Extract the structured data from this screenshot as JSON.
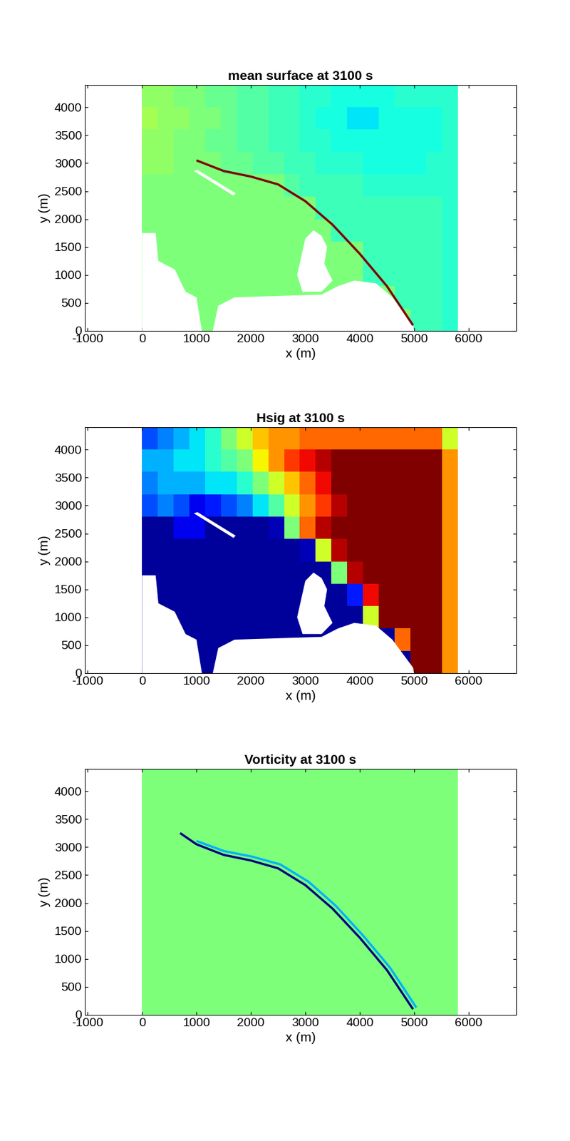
{
  "chart_data": [
    {
      "type": "map",
      "title": "mean surface at 3100 s",
      "x_label": "x (m)",
      "y_label": "y (m)",
      "xlim": [
        -1050,
        6880
      ],
      "ylim": [
        0,
        4400
      ],
      "xticks": [
        -1000,
        0,
        1000,
        2000,
        3000,
        4000,
        5000,
        6000
      ],
      "yticks": [
        0,
        500,
        1000,
        1500,
        2000,
        2500,
        3000,
        3500,
        4000
      ],
      "zlim": [
        -0.2,
        0.2
      ],
      "x_edges": [
        0,
        290,
        580,
        870,
        1160,
        1450,
        1740,
        2030,
        2320,
        2610,
        2900,
        3190,
        3480,
        3770,
        4060,
        4350,
        4640,
        4930,
        5220,
        5510,
        5800
      ],
      "y_edges": [
        0,
        400,
        800,
        1200,
        1600,
        2000,
        2400,
        2800,
        3200,
        3600,
        4000,
        4400
      ],
      "cells": [
        [
          0,
          0,
          0,
          0,
          0,
          0,
          0,
          0,
          0,
          0,
          0,
          0,
          0,
          0,
          0,
          0,
          0,
          -0.03,
          -0.03,
          -0.04
        ],
        [
          0,
          0,
          0,
          0,
          0,
          0,
          0,
          0,
          0,
          0,
          0,
          0,
          0,
          0,
          0,
          0,
          -0.03,
          -0.03,
          -0.03,
          -0.04
        ],
        [
          0,
          0,
          0,
          0,
          0,
          0,
          0,
          0,
          0,
          0,
          0,
          0,
          0,
          0,
          -0.03,
          -0.03,
          -0.03,
          -0.03,
          -0.03,
          -0.04
        ],
        [
          0,
          0,
          0,
          0,
          0,
          0,
          0,
          0,
          0,
          0,
          0,
          0,
          0,
          0,
          -0.03,
          -0.03,
          -0.03,
          -0.03,
          -0.03,
          -0.04
        ],
        [
          0,
          0,
          0,
          0,
          0,
          0,
          0,
          0,
          0,
          0,
          0,
          0,
          -0.03,
          -0.03,
          -0.03,
          -0.03,
          -0.03,
          -0.03,
          -0.03,
          -0.04
        ],
        [
          0,
          0,
          0,
          0,
          0,
          0,
          0,
          0,
          0,
          0,
          0,
          -0.03,
          -0.03,
          -0.03,
          -0.03,
          -0.03,
          -0.03,
          -0.03,
          -0.03,
          -0.04
        ],
        [
          0,
          0,
          0,
          0,
          0,
          0,
          0,
          0,
          0,
          -0.02,
          -0.03,
          -0.03,
          -0.03,
          -0.03,
          -0.04,
          -0.04,
          -0.04,
          -0.04,
          -0.04,
          -0.04
        ],
        [
          0.01,
          0.01,
          0.0,
          0.0,
          0.0,
          -0.01,
          -0.01,
          -0.02,
          -0.02,
          -0.03,
          -0.03,
          -0.04,
          -0.04,
          -0.04,
          -0.05,
          -0.05,
          -0.05,
          -0.05,
          -0.04,
          -0.04
        ],
        [
          0.01,
          0.01,
          0.0,
          0.0,
          -0.01,
          -0.01,
          -0.02,
          -0.02,
          -0.03,
          -0.03,
          -0.04,
          -0.04,
          -0.05,
          -0.05,
          -0.05,
          -0.05,
          -0.05,
          -0.05,
          -0.05,
          -0.04
        ],
        [
          0.02,
          0.01,
          0.01,
          0.0,
          0.0,
          -0.01,
          -0.02,
          -0.02,
          -0.03,
          -0.03,
          -0.04,
          -0.05,
          -0.05,
          -0.06,
          -0.06,
          -0.05,
          -0.05,
          -0.05,
          -0.05,
          -0.04
        ],
        [
          0.01,
          0.01,
          0.0,
          0.0,
          -0.01,
          -0.01,
          -0.02,
          -0.02,
          -0.03,
          -0.03,
          -0.04,
          -0.04,
          -0.05,
          -0.05,
          -0.05,
          -0.05,
          -0.04,
          -0.04,
          -0.04,
          -0.04
        ]
      ],
      "lines": [
        {
          "x": [
            4980,
            4500,
            4000,
            3500,
            3000,
            2500,
            2000,
            1500,
            1000
          ],
          "y": [
            100,
            800,
            1380,
            1900,
            2320,
            2620,
            2760,
            2860,
            3050
          ],
          "value": 0.2
        }
      ],
      "land": [
        [
          [
            0,
            0
          ],
          [
            0,
            1750
          ],
          [
            250,
            1750
          ],
          [
            300,
            1250
          ],
          [
            600,
            1100
          ],
          [
            800,
            700
          ],
          [
            1000,
            600
          ],
          [
            1100,
            0
          ]
        ],
        [
          [
            1300,
            0
          ],
          [
            1400,
            450
          ],
          [
            1700,
            600
          ],
          [
            3300,
            650
          ],
          [
            3600,
            800
          ],
          [
            3900,
            900
          ],
          [
            4300,
            850
          ],
          [
            4600,
            600
          ],
          [
            4980,
            100
          ],
          [
            5000,
            0
          ]
        ],
        [
          [
            2850,
            1000
          ],
          [
            3000,
            1650
          ],
          [
            3150,
            1800
          ],
          [
            3300,
            1700
          ],
          [
            3400,
            1500
          ],
          [
            3350,
            1200
          ],
          [
            3500,
            900
          ],
          [
            3300,
            700
          ],
          [
            2950,
            700
          ]
        ],
        [
          [
            950,
            2860
          ],
          [
            1020,
            2880
          ],
          [
            1720,
            2460
          ],
          [
            1680,
            2420
          ]
        ]
      ]
    },
    {
      "type": "map",
      "title": "Hsig at 3100 s",
      "x_label": "x (m)",
      "y_label": "y (m)",
      "xlim": [
        -1050,
        6880
      ],
      "ylim": [
        0,
        4400
      ],
      "xticks": [
        -1000,
        0,
        1000,
        2000,
        3000,
        4000,
        5000,
        6000
      ],
      "yticks": [
        0,
        500,
        1000,
        1500,
        2000,
        2500,
        3000,
        3500,
        4000
      ],
      "zlim": [
        0,
        2
      ],
      "x_edges": [
        0,
        290,
        580,
        870,
        1160,
        1450,
        1740,
        2030,
        2320,
        2610,
        2900,
        3190,
        3480,
        3770,
        4060,
        4350,
        4640,
        4930,
        5220,
        5510,
        5800
      ],
      "y_edges": [
        0,
        400,
        800,
        1200,
        1600,
        2000,
        2400,
        2800,
        3200,
        3600,
        4000,
        4400
      ],
      "cells": [
        [
          0.05,
          0.05,
          0.05,
          0.05,
          0.05,
          0.05,
          0.05,
          0.05,
          0.05,
          0.05,
          0.05,
          0.05,
          0.05,
          0.05,
          0.05,
          0.05,
          0.05,
          2.0,
          2.0,
          1.5
        ],
        [
          0.05,
          0.05,
          0.05,
          0.05,
          0.05,
          0.05,
          0.05,
          0.05,
          0.05,
          0.05,
          0.05,
          0.05,
          0.05,
          0.05,
          0.05,
          0.05,
          1.6,
          2.0,
          2.0,
          1.5
        ],
        [
          0.05,
          0.05,
          0.05,
          0.05,
          0.05,
          0.05,
          0.05,
          0.05,
          0.05,
          0.05,
          0.05,
          0.05,
          0.05,
          0.05,
          1.2,
          2.0,
          2.0,
          2.0,
          2.0,
          1.5
        ],
        [
          0.05,
          0.05,
          0.05,
          0.05,
          0.05,
          0.05,
          0.05,
          0.05,
          0.05,
          0.05,
          0.05,
          0.05,
          0.05,
          0.3,
          1.8,
          2.0,
          2.0,
          2.0,
          2.0,
          1.5
        ],
        [
          0.05,
          0.05,
          0.05,
          0.05,
          0.05,
          0.05,
          0.05,
          0.05,
          0.05,
          0.05,
          0.05,
          0.05,
          1.0,
          1.9,
          2.0,
          2.0,
          2.0,
          2.0,
          2.0,
          1.5
        ],
        [
          0.05,
          0.05,
          0.05,
          0.05,
          0.05,
          0.05,
          0.05,
          0.05,
          0.05,
          0.05,
          0.1,
          1.2,
          1.9,
          2.0,
          2.0,
          2.0,
          2.0,
          2.0,
          2.0,
          1.5
        ],
        [
          0.05,
          0.05,
          0.2,
          0.2,
          0.05,
          0.05,
          0.05,
          0.05,
          0.1,
          1.0,
          1.6,
          1.9,
          2.0,
          2.0,
          2.0,
          2.0,
          2.0,
          2.0,
          2.0,
          1.5
        ],
        [
          0.4,
          0.5,
          0.4,
          0.2,
          0.3,
          0.4,
          0.5,
          0.7,
          0.9,
          1.2,
          1.5,
          1.7,
          1.9,
          2.0,
          2.0,
          2.0,
          2.0,
          2.0,
          2.0,
          1.5
        ],
        [
          0.5,
          0.6,
          0.6,
          0.6,
          0.7,
          0.7,
          0.8,
          1.0,
          1.2,
          1.4,
          1.6,
          1.8,
          2.0,
          2.0,
          2.0,
          2.0,
          2.0,
          2.0,
          2.0,
          1.5
        ],
        [
          0.6,
          0.6,
          0.7,
          0.7,
          0.8,
          0.9,
          1.0,
          1.3,
          1.5,
          1.7,
          1.8,
          1.9,
          2.0,
          2.0,
          2.0,
          2.0,
          2.0,
          2.0,
          2.0,
          1.5
        ],
        [
          0.4,
          0.5,
          0.6,
          0.7,
          0.8,
          1.0,
          1.2,
          1.4,
          1.5,
          1.5,
          1.6,
          1.6,
          1.6,
          1.6,
          1.6,
          1.6,
          1.6,
          1.6,
          1.6,
          1.2
        ]
      ],
      "lines": [],
      "land": [
        [
          [
            0,
            0
          ],
          [
            0,
            1750
          ],
          [
            250,
            1750
          ],
          [
            300,
            1250
          ],
          [
            600,
            1100
          ],
          [
            800,
            700
          ],
          [
            1000,
            600
          ],
          [
            1100,
            0
          ]
        ],
        [
          [
            1300,
            0
          ],
          [
            1400,
            450
          ],
          [
            1700,
            600
          ],
          [
            3300,
            650
          ],
          [
            3600,
            800
          ],
          [
            3900,
            900
          ],
          [
            4300,
            850
          ],
          [
            4600,
            600
          ],
          [
            4980,
            100
          ],
          [
            5000,
            0
          ]
        ],
        [
          [
            2850,
            1000
          ],
          [
            3000,
            1650
          ],
          [
            3150,
            1800
          ],
          [
            3300,
            1700
          ],
          [
            3400,
            1500
          ],
          [
            3350,
            1200
          ],
          [
            3500,
            900
          ],
          [
            3300,
            700
          ],
          [
            2950,
            700
          ]
        ],
        [
          [
            950,
            2860
          ],
          [
            1020,
            2880
          ],
          [
            1720,
            2460
          ],
          [
            1680,
            2420
          ]
        ]
      ]
    },
    {
      "type": "map",
      "title": "Vorticity at 3100 s",
      "x_label": "x (m)",
      "y_label": "y (m)",
      "xlim": [
        -1050,
        6880
      ],
      "ylim": [
        0,
        4400
      ],
      "xticks": [
        -1000,
        0,
        1000,
        2000,
        3000,
        4000,
        5000,
        6000
      ],
      "yticks": [
        0,
        500,
        1000,
        1500,
        2000,
        2500,
        3000,
        3500,
        4000
      ],
      "zlim": [
        -0.05,
        0.05
      ],
      "x_edges": [
        0,
        290,
        580,
        870,
        1160,
        1450,
        1740,
        2030,
        2320,
        2610,
        2900,
        3190,
        3480,
        3770,
        4060,
        4350,
        4640,
        4930,
        5220,
        5510,
        5800
      ],
      "y_edges": [
        0,
        400,
        800,
        1200,
        1600,
        2000,
        2400,
        2800,
        3200,
        3600,
        4000,
        4400
      ],
      "cells": [
        [
          0,
          0,
          0,
          0,
          0,
          0,
          0,
          0,
          0,
          0,
          0,
          0,
          0,
          0,
          0,
          0,
          0,
          0,
          0,
          0
        ],
        [
          0,
          0,
          0,
          0,
          0,
          0,
          0,
          0,
          0,
          0,
          0,
          0,
          0,
          0,
          0,
          0,
          0,
          0,
          0,
          0
        ],
        [
          0,
          0,
          0,
          0,
          0,
          0,
          0,
          0,
          0,
          0,
          0,
          0,
          0,
          0,
          0,
          0,
          0,
          0,
          0,
          0
        ],
        [
          0,
          0,
          0,
          0,
          0,
          0,
          0,
          0,
          0,
          0,
          0,
          0,
          0,
          0,
          0,
          0,
          0,
          0,
          0,
          0
        ],
        [
          0,
          0,
          0,
          0,
          0,
          0,
          0,
          0,
          0,
          0,
          0,
          0,
          0,
          0,
          0,
          0,
          0,
          0,
          0,
          0
        ],
        [
          0,
          0,
          0,
          0,
          0,
          0,
          0,
          0,
          0,
          0,
          0,
          0,
          0,
          0,
          0,
          0,
          0,
          0,
          0,
          0
        ],
        [
          0,
          0,
          0,
          0,
          0,
          0,
          0,
          0,
          0,
          0,
          0,
          0,
          0,
          0,
          0,
          0,
          0,
          0,
          0,
          0
        ],
        [
          0,
          0,
          0,
          0,
          0,
          0,
          0,
          0,
          0,
          0,
          0,
          0,
          0,
          0,
          0,
          0,
          0,
          0,
          0,
          0
        ],
        [
          0,
          0,
          0,
          0,
          0,
          0,
          0,
          0,
          0,
          0,
          0,
          0,
          0,
          0,
          0,
          0,
          0,
          0,
          0,
          0
        ],
        [
          0,
          0,
          0,
          0,
          0,
          0,
          0,
          0,
          0,
          0,
          0,
          0,
          0,
          0,
          0,
          0,
          0,
          0,
          0,
          0
        ],
        [
          0,
          0,
          0,
          0,
          0,
          0,
          0,
          0,
          0,
          0,
          0,
          0,
          0,
          0,
          0,
          0,
          0,
          0,
          0,
          0
        ]
      ],
      "lines": [
        {
          "x": [
            5040,
            4560,
            4060,
            3560,
            3060,
            2540,
            2020,
            1500,
            1000
          ],
          "y": [
            130,
            840,
            1420,
            1950,
            2380,
            2690,
            2830,
            2930,
            3110
          ],
          "value": -0.02
        },
        {
          "x": [
            4980,
            4500,
            4000,
            3500,
            3000,
            2500,
            2000,
            1500,
            1000,
            700
          ],
          "y": [
            100,
            800,
            1380,
            1900,
            2320,
            2620,
            2760,
            2860,
            3050,
            3250
          ],
          "value": -0.05
        }
      ],
      "land": []
    }
  ]
}
